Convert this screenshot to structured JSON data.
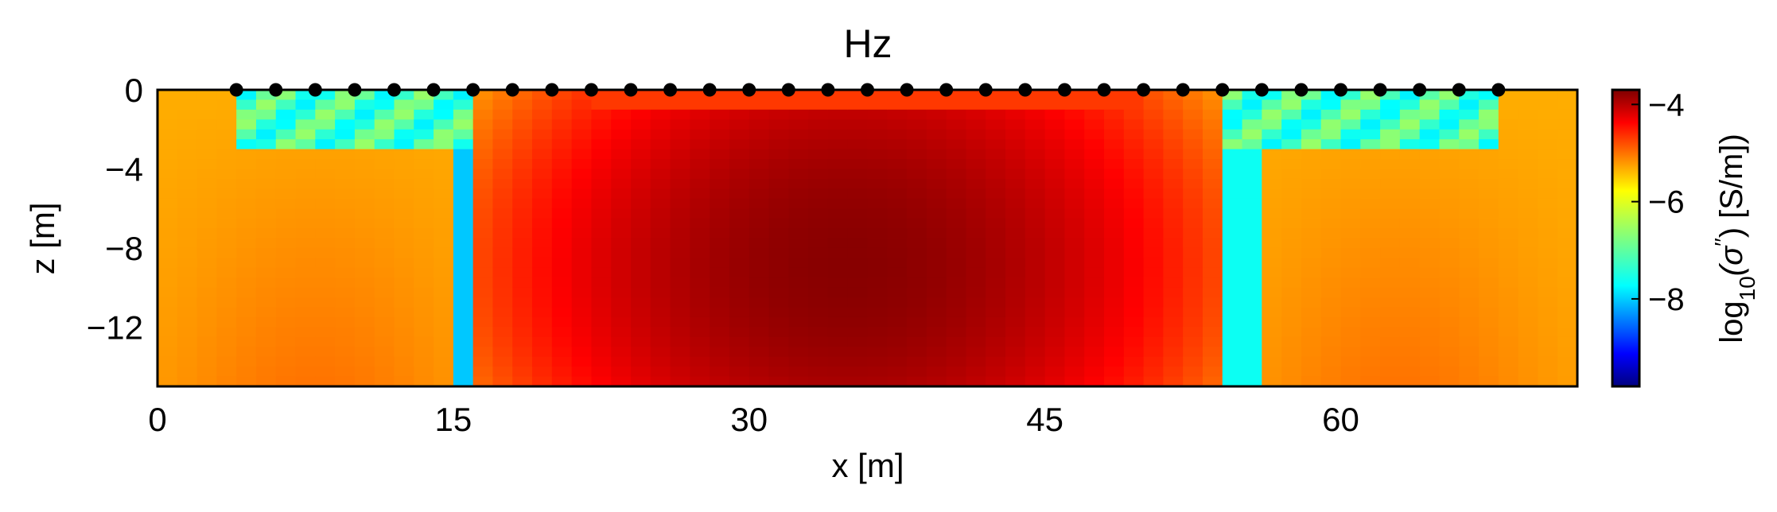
{
  "chart_data": {
    "type": "heatmap",
    "title": "Hz",
    "xlabel": "x [m]",
    "ylabel": "z [m]",
    "xlim": [
      0,
      72
    ],
    "ylim": [
      -15,
      0
    ],
    "x_ticks": [
      0,
      15,
      30,
      45,
      60
    ],
    "x_tick_labels": [
      "0",
      "15",
      "30",
      "45",
      "60"
    ],
    "y_ticks": [
      0,
      -4,
      -8,
      -12
    ],
    "y_tick_labels": [
      "0",
      "−4",
      "−8",
      "−12"
    ],
    "colorbar": {
      "label_prefix": "log",
      "label_sub": "10",
      "label_mid": "(σ",
      "label_sup": "′′",
      "label_suffix": ") [S/m])",
      "range": [
        -9.8,
        -3.7
      ],
      "ticks": [
        -4,
        -6,
        -8
      ],
      "tick_labels": [
        "−4",
        "−6",
        "−8"
      ],
      "colormap": "jet"
    },
    "grid": false,
    "field": {
      "description": "approximate log10 conductivity field sampled on regular grid",
      "nx": 72,
      "nz": 15,
      "dx": 1,
      "dz": 1,
      "background": -5.2,
      "center_peak": -3.75,
      "center_x": 35,
      "center_z": -9,
      "boundary_x_left": 15.5,
      "boundary_x_right": 55
    },
    "electrodes": {
      "z": 0,
      "x": [
        4,
        6,
        8,
        10,
        12,
        14,
        16,
        18,
        20,
        22,
        24,
        26,
        28,
        30,
        32,
        34,
        36,
        38,
        40,
        42,
        44,
        46,
        48,
        50,
        52,
        54,
        56,
        58,
        60,
        62,
        64,
        66,
        68
      ]
    }
  }
}
